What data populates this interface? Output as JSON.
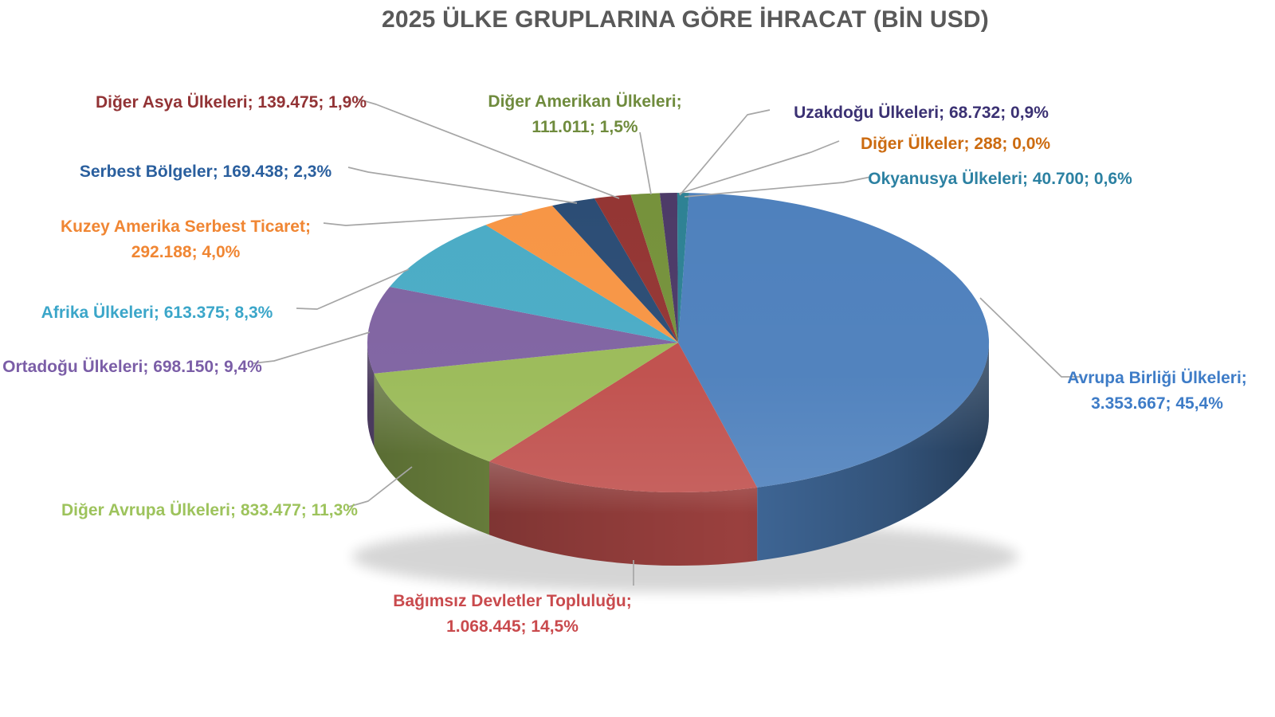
{
  "chart_data": {
    "type": "pie",
    "effect": "3d",
    "title": "2025 ÜLKE GRUPLARINA GÖRE İHRACAT (BİN USD)",
    "unit": "BİN USD",
    "legend": "none",
    "labels_format": "name; value; percent",
    "title_color": "#595959",
    "leader_line_color": "#A6A6A6",
    "background": "#FFFFFF",
    "start_angle_deg": 2,
    "slices": [
      {
        "id": "avrupa-birligi",
        "label": "Avrupa Birliği Ülkeleri",
        "value": "3.353.667",
        "value_num": 3353667,
        "pct": "45,4%",
        "pct_num": 45.4,
        "color": "#4F81BD",
        "label_color": "#3E7CC7",
        "display": "Avrupa Birliği Ülkeleri; 3.353.667; 45,4%"
      },
      {
        "id": "bagimsiz-devletler",
        "label": "Bağımsız Devletler Topluluğu",
        "value": "1.068.445",
        "value_num": 1068445,
        "pct": "14,5%",
        "pct_num": 14.5,
        "color": "#C0504D",
        "label_color": "#C94A4D",
        "display": "Bağımsız Devletler Topluluğu; 1.068.445; 14,5%"
      },
      {
        "id": "diger-avrupa",
        "label": "Diğer Avrupa Ülkeleri",
        "value": "833.477",
        "value_num": 833477,
        "pct": "11,3%",
        "pct_num": 11.3,
        "color": "#9BBB59",
        "label_color": "#9DC35C",
        "display": "Diğer Avrupa Ülkeleri; 833.477; 11,3%"
      },
      {
        "id": "ortadogu",
        "label": "Ortadoğu Ülkeleri",
        "value": "698.150",
        "value_num": 698150,
        "pct": "9,4%",
        "pct_num": 9.4,
        "color": "#8064A2",
        "label_color": "#7B5EA7",
        "display": "Ortadoğu Ülkeleri; 698.150; 9,4%"
      },
      {
        "id": "afrika",
        "label": "Afrika Ülkeleri",
        "value": "613.375",
        "value_num": 613375,
        "pct": "8,3%",
        "pct_num": 8.3,
        "color": "#4BACC6",
        "label_color": "#3BA6C9",
        "display": "Afrika Ülkeleri; 613.375; 8,3%"
      },
      {
        "id": "kuzey-amerika",
        "label": "Kuzey Amerika Serbest Ticaret",
        "value": "292.188",
        "value_num": 292188,
        "pct": "4,0%",
        "pct_num": 4.0,
        "color": "#F79646",
        "label_color": "#F08633",
        "display": "Kuzey Amerika Serbest Ticaret; 292.188; 4,0%"
      },
      {
        "id": "serbest-bolgeler",
        "label": "Serbest Bölgeler",
        "value": "169.438",
        "value_num": 169438,
        "pct": "2,3%",
        "pct_num": 2.3,
        "color": "#2C4D75",
        "label_color": "#2A5F9E",
        "display": "Serbest Bölgeler; 169.438; 2,3%"
      },
      {
        "id": "diger-asya",
        "label": "Diğer Asya Ülkeleri",
        "value": "139.475",
        "value_num": 139475,
        "pct": "1,9%",
        "pct_num": 1.9,
        "color": "#943634",
        "label_color": "#923335",
        "display": "Diğer Asya Ülkeleri; 139.475; 1,9%"
      },
      {
        "id": "diger-amerikan",
        "label": "Diğer Amerikan Ülkeleri",
        "value": "111.011",
        "value_num": 111011,
        "pct": "1,5%",
        "pct_num": 1.5,
        "color": "#76923C",
        "label_color": "#6F8B3D",
        "display": "Diğer Amerikan Ülkeleri; 111.011; 1,5%"
      },
      {
        "id": "uzakdogu",
        "label": "Uzakdoğu Ülkeleri",
        "value": "68.732",
        "value_num": 68732,
        "pct": "0,9%",
        "pct_num": 0.9,
        "color": "#4D3B68",
        "label_color": "#3B3173",
        "display": "Uzakdoğu Ülkeleri; 68.732; 0,9%"
      },
      {
        "id": "diger-ulkeler",
        "label": "Diğer Ülkeler",
        "value": "288",
        "value_num": 288,
        "pct": "0,0%",
        "pct_num": 0.0,
        "color": "#E36C0A",
        "label_color": "#CC6B10",
        "display": "Diğer Ülkeler; 288; 0,0%"
      },
      {
        "id": "okyanusya",
        "label": "Okyanusya Ülkeleri",
        "value": "40.700",
        "value_num": 40700,
        "pct": "0,6%",
        "pct_num": 0.6,
        "color": "#2E8294",
        "label_color": "#2C81A2",
        "display": "Okyanusya Ülkeleri; 40.700; 0,6%"
      }
    ]
  }
}
